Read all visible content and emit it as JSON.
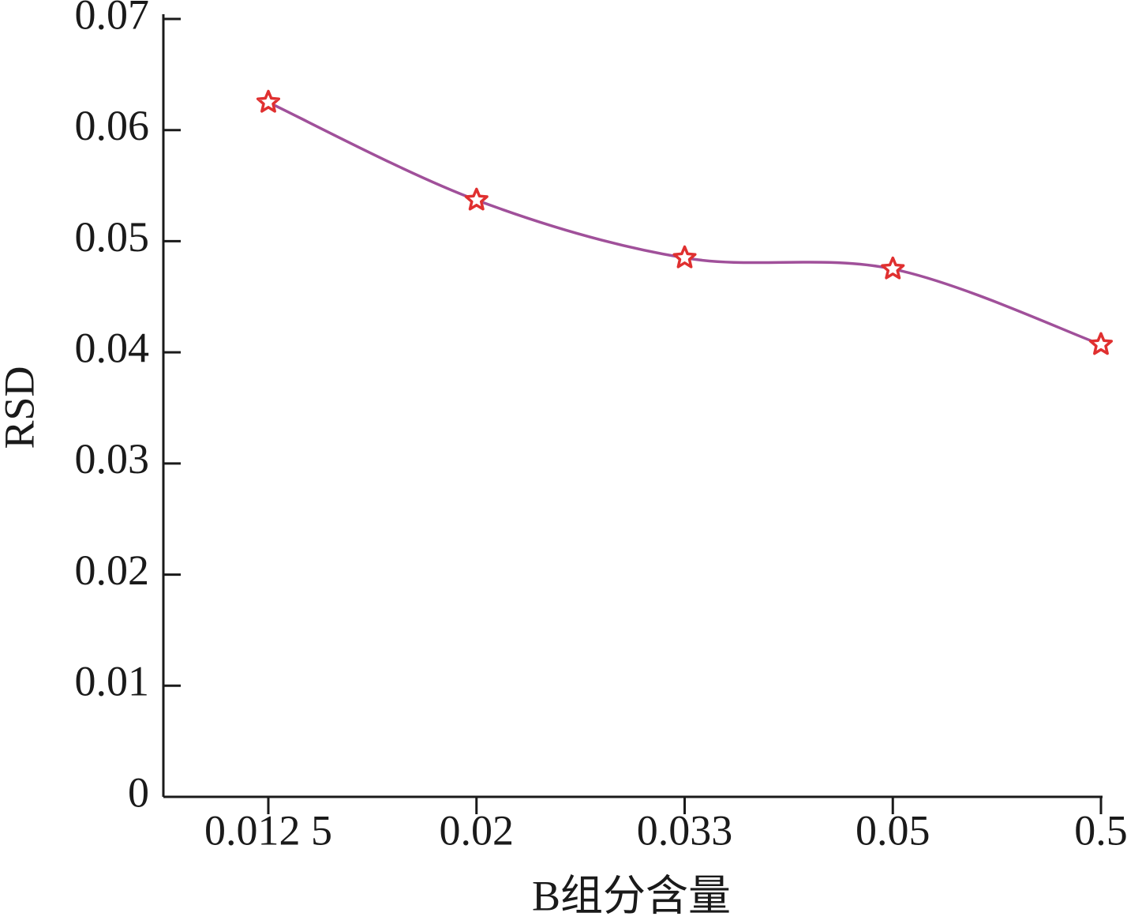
{
  "chart_data": {
    "type": "line",
    "x_label": "B组分含量",
    "y_label": "RSD",
    "categories": [
      "0.012 5",
      "0.02",
      "0.033",
      "0.05",
      "0.5"
    ],
    "series": [
      {
        "color": "#a0509a",
        "marker_color": "#e03030",
        "values": [
          0.0625,
          0.0537,
          0.0485,
          0.0475,
          0.0407
        ]
      }
    ],
    "ylim": [
      0,
      0.07
    ],
    "yticks": [
      0,
      0.01,
      0.02,
      0.03,
      0.04,
      0.05,
      0.06,
      0.07
    ],
    "grid": false
  }
}
